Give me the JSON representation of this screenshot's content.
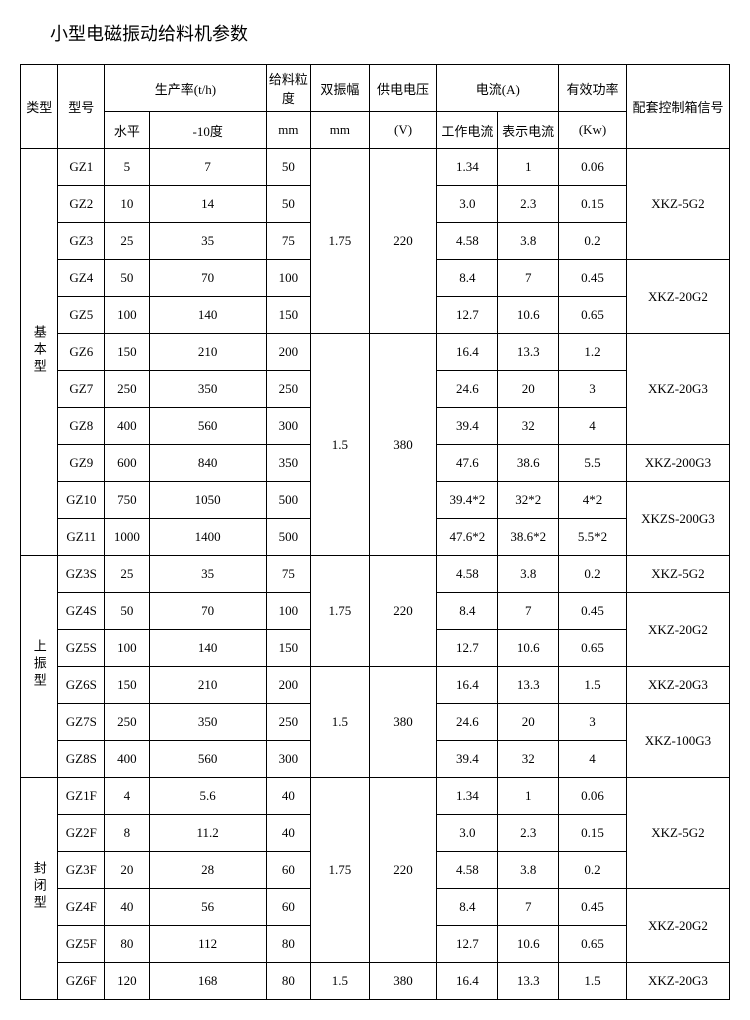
{
  "title": "小型电磁振动给料机参数",
  "headers": {
    "type": "类型",
    "model": "型号",
    "rate_group": "生产率(t/h)",
    "rate_hor": "水平",
    "rate_neg10": "-10度",
    "grain": "给料粒度",
    "grain_unit": "mm",
    "amp": "双振幅",
    "amp_unit": "mm",
    "volt": "供电电压",
    "volt_unit": "(V)",
    "current_group": "电流(A)",
    "current_work": "工作电流",
    "current_disp": "表示电流",
    "power": "有效功率",
    "power_unit": "(Kw)",
    "box": "配套控制箱信号"
  },
  "types": {
    "basic": "基本型",
    "upper": "上振型",
    "closed": "封闭型"
  },
  "rows_basic": [
    {
      "model": "GZ1",
      "hor": "5",
      "neg10": "7",
      "grain": "50",
      "cw": "1.34",
      "cd": "1",
      "pow": "0.06"
    },
    {
      "model": "GZ2",
      "hor": "10",
      "neg10": "14",
      "grain": "50",
      "cw": "3.0",
      "cd": "2.3",
      "pow": "0.15"
    },
    {
      "model": "GZ3",
      "hor": "25",
      "neg10": "35",
      "grain": "75",
      "cw": "4.58",
      "cd": "3.8",
      "pow": "0.2"
    },
    {
      "model": "GZ4",
      "hor": "50",
      "neg10": "70",
      "grain": "100",
      "cw": "8.4",
      "cd": "7",
      "pow": "0.45"
    },
    {
      "model": "GZ5",
      "hor": "100",
      "neg10": "140",
      "grain": "150",
      "cw": "12.7",
      "cd": "10.6",
      "pow": "0.65"
    },
    {
      "model": "GZ6",
      "hor": "150",
      "neg10": "210",
      "grain": "200",
      "cw": "16.4",
      "cd": "13.3",
      "pow": "1.2"
    },
    {
      "model": "GZ7",
      "hor": "250",
      "neg10": "350",
      "grain": "250",
      "cw": "24.6",
      "cd": "20",
      "pow": "3"
    },
    {
      "model": "GZ8",
      "hor": "400",
      "neg10": "560",
      "grain": "300",
      "cw": "39.4",
      "cd": "32",
      "pow": "4"
    },
    {
      "model": "GZ9",
      "hor": "600",
      "neg10": "840",
      "grain": "350",
      "cw": "47.6",
      "cd": "38.6",
      "pow": "5.5"
    },
    {
      "model": "GZ10",
      "hor": "750",
      "neg10": "1050",
      "grain": "500",
      "cw": "39.4*2",
      "cd": "32*2",
      "pow": "4*2"
    },
    {
      "model": "GZ11",
      "hor": "1000",
      "neg10": "1400",
      "grain": "500",
      "cw": "47.6*2",
      "cd": "38.6*2",
      "pow": "5.5*2"
    }
  ],
  "rows_upper": [
    {
      "model": "GZ3S",
      "hor": "25",
      "neg10": "35",
      "grain": "75",
      "cw": "4.58",
      "cd": "3.8",
      "pow": "0.2"
    },
    {
      "model": "GZ4S",
      "hor": "50",
      "neg10": "70",
      "grain": "100",
      "cw": "8.4",
      "cd": "7",
      "pow": "0.45"
    },
    {
      "model": "GZ5S",
      "hor": "100",
      "neg10": "140",
      "grain": "150",
      "cw": "12.7",
      "cd": "10.6",
      "pow": "0.65"
    },
    {
      "model": "GZ6S",
      "hor": "150",
      "neg10": "210",
      "grain": "200",
      "cw": "16.4",
      "cd": "13.3",
      "pow": "1.5"
    },
    {
      "model": "GZ7S",
      "hor": "250",
      "neg10": "350",
      "grain": "250",
      "cw": "24.6",
      "cd": "20",
      "pow": "3"
    },
    {
      "model": "GZ8S",
      "hor": "400",
      "neg10": "560",
      "grain": "300",
      "cw": "39.4",
      "cd": "32",
      "pow": "4"
    }
  ],
  "rows_closed": [
    {
      "model": "GZ1F",
      "hor": "4",
      "neg10": "5.6",
      "grain": "40",
      "cw": "1.34",
      "cd": "1",
      "pow": "0.06"
    },
    {
      "model": "GZ2F",
      "hor": "8",
      "neg10": "11.2",
      "grain": "40",
      "cw": "3.0",
      "cd": "2.3",
      "pow": "0.15"
    },
    {
      "model": "GZ3F",
      "hor": "20",
      "neg10": "28",
      "grain": "60",
      "cw": "4.58",
      "cd": "3.8",
      "pow": "0.2"
    },
    {
      "model": "GZ4F",
      "hor": "40",
      "neg10": "56",
      "grain": "60",
      "cw": "8.4",
      "cd": "7",
      "pow": "0.45"
    },
    {
      "model": "GZ5F",
      "hor": "80",
      "neg10": "112",
      "grain": "80",
      "cw": "12.7",
      "cd": "10.6",
      "pow": "0.65"
    },
    {
      "model": "GZ6F",
      "hor": "120",
      "neg10": "168",
      "grain": "80",
      "cw": "16.4",
      "cd": "13.3",
      "pow": "1.5"
    }
  ],
  "spans": {
    "basic_amp1": "1.75",
    "basic_volt1": "220",
    "basic_amp2": "1.5",
    "basic_volt2": "380",
    "upper_amp1": "1.75",
    "upper_volt1": "220",
    "upper_amp2": "1.5",
    "upper_volt2": "380",
    "closed_amp1": "1.75",
    "closed_volt1": "220",
    "closed_amp2": "1.5",
    "closed_volt2": "380",
    "box_b1": "XKZ-5G2",
    "box_b2": "XKZ-20G2",
    "box_b3": "XKZ-20G3",
    "box_b4": "XKZ-200G3",
    "box_b5": "XKZS-200G3",
    "box_u1": "XKZ-5G2",
    "box_u2": "XKZ-20G2",
    "box_u3": "XKZ-20G3",
    "box_u4": "XKZ-100G3",
    "box_c1": "XKZ-5G2",
    "box_c2": "XKZ-20G2",
    "box_c3": "XKZ-20G3"
  }
}
